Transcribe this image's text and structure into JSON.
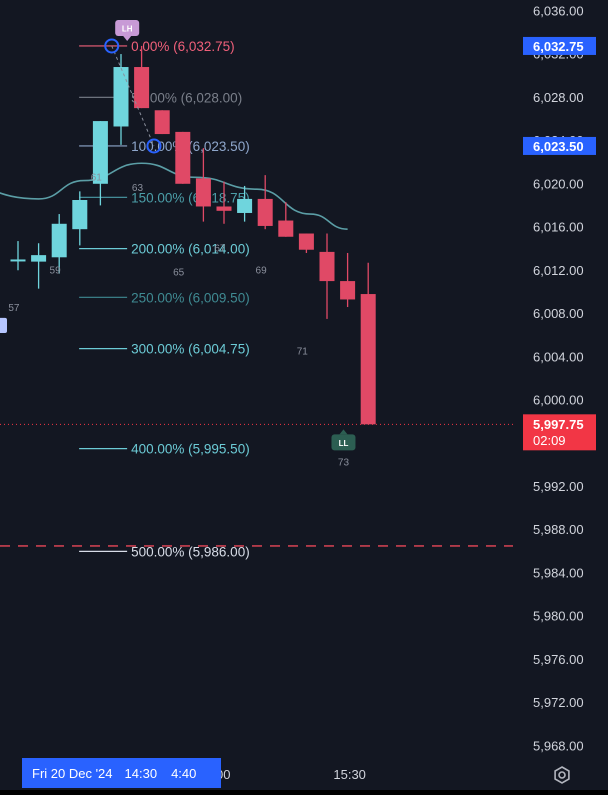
{
  "chart_data": {
    "type": "candlestick",
    "price_axis": {
      "ticks": [
        "6,036.00",
        "6,032.00",
        "6,028.00",
        "6,024.00",
        "6,020.00",
        "6,016.00",
        "6,012.00",
        "6,008.00",
        "6,004.00",
        "6,000.00",
        "5,996.00",
        "5,992.00",
        "5,988.00",
        "5,984.00",
        "5,980.00",
        "5,976.00",
        "5,972.00",
        "5,968.00"
      ],
      "tick_values": [
        6036,
        6032,
        6028,
        6024,
        6020,
        6016,
        6012,
        6008,
        6004,
        6000,
        5996,
        5992,
        5988,
        5984,
        5980,
        5976,
        5972,
        5968
      ],
      "range": [
        5966.7,
        6037.0
      ]
    },
    "time_axis": {
      "labels": [
        {
          "text": "5:00",
          "slot": 9.7
        },
        {
          "text": "15:30",
          "slot": 16.1
        }
      ],
      "crosshair": {
        "date": "Fri 20 Dec '24",
        "time1": "14:30",
        "time2": "4:40"
      }
    },
    "candles": [
      {
        "o": 6013.0,
        "h": 6014.7,
        "l": 6012.0,
        "c": 6013.0
      },
      {
        "o": 6012.8,
        "h": 6014.5,
        "l": 6010.3,
        "c": 6013.4
      },
      {
        "o": 6013.2,
        "h": 6017.2,
        "l": 6011.7,
        "c": 6016.3
      },
      {
        "o": 6015.8,
        "h": 6019.3,
        "l": 6014.3,
        "c": 6018.5
      },
      {
        "o": 6020.0,
        "h": 6025.8,
        "l": 6018.0,
        "c": 6025.8
      },
      {
        "o": 6025.3,
        "h": 6032.0,
        "l": 6023.6,
        "c": 6030.8
      },
      {
        "o": 6030.8,
        "h": 6032.75,
        "l": 6027.0,
        "c": 6027.0
      },
      {
        "o": 6026.8,
        "h": 6026.8,
        "l": 6024.6,
        "c": 6024.6
      },
      {
        "o": 6024.8,
        "h": 6024.8,
        "l": 6020.0,
        "c": 6020.0
      },
      {
        "o": 6020.5,
        "h": 6023.3,
        "l": 6016.5,
        "c": 6017.9
      },
      {
        "o": 6017.9,
        "h": 6020.2,
        "l": 6016.3,
        "c": 6017.5
      },
      {
        "o": 6017.3,
        "h": 6019.8,
        "l": 6016.5,
        "c": 6018.6
      },
      {
        "o": 6018.6,
        "h": 6020.8,
        "l": 6015.8,
        "c": 6016.1
      },
      {
        "o": 6016.6,
        "h": 6018.3,
        "l": 6015.1,
        "c": 6015.1
      },
      {
        "o": 6015.4,
        "h": 6015.4,
        "l": 6013.6,
        "c": 6013.9
      },
      {
        "o": 6013.7,
        "h": 6015.4,
        "l": 6007.5,
        "c": 6011.0
      },
      {
        "o": 6011.0,
        "h": 6013.6,
        "l": 6008.6,
        "c": 6009.3
      },
      {
        "o": 6009.8,
        "h": 6012.7,
        "l": 5997.75,
        "c": 5997.75
      }
    ],
    "moving_average": [
      {
        "slot": -3.5,
        "v": 6020.2
      },
      {
        "slot": 1.0,
        "v": 6018.6
      },
      {
        "slot": 3.2,
        "v": 6020.3
      },
      {
        "slot": 6.0,
        "v": 6021.9
      },
      {
        "slot": 8.6,
        "v": 6020.6
      },
      {
        "slot": 11.6,
        "v": 6019.5
      },
      {
        "slot": 14.2,
        "v": 6017.2
      },
      {
        "slot": 16.0,
        "v": 6015.8
      }
    ],
    "fib_levels": [
      {
        "label": "0.00% (6,032.75)",
        "value": 6032.75,
        "color": "#f0607a",
        "x_start_slot": 5.2
      },
      {
        "label": "50.00% (6,028.00)",
        "value": 6028.0,
        "color": "#7a7f8a",
        "x_start_slot": 5.2
      },
      {
        "label": "100.00% (6,023.50)",
        "value": 6023.5,
        "color": "#8fa7cc",
        "x_start_slot": 5.2
      },
      {
        "label": "150.00% (6,018.75)",
        "value": 6018.75,
        "color": "#4b9ea8",
        "x_start_slot": 5.2
      },
      {
        "label": "200.00% (6,014.00)",
        "value": 6014.0,
        "color": "#6ccbd6",
        "x_start_slot": 5.2
      },
      {
        "label": "250.00% (6,009.50)",
        "value": 6009.5,
        "color": "#3f8a92",
        "x_start_slot": 5.2
      },
      {
        "label": "300.00% (6,004.75)",
        "value": 6004.75,
        "color": "#6ccbd6",
        "x_start_slot": 5.2
      },
      {
        "label": "400.00% (5,995.50)",
        "value": 5995.5,
        "color": "#6ccbd6",
        "x_start_slot": 5.2
      },
      {
        "label": "500.00% (5,986.00)",
        "value": 5986.0,
        "color": "#d8dde8",
        "x_start_slot": 5.2
      }
    ],
    "bar_counts": [
      {
        "text": "57",
        "slot": -0.2,
        "v": 6008.5
      },
      {
        "text": "59",
        "slot": 1.8,
        "v": 6012.0
      },
      {
        "text": "61",
        "slot": 3.8,
        "v": 6020.6
      },
      {
        "text": "63",
        "slot": 5.8,
        "v": 6019.6
      },
      {
        "text": "65",
        "slot": 7.8,
        "v": 6011.8
      },
      {
        "text": "67",
        "slot": 9.8,
        "v": 6014.0
      },
      {
        "text": "69",
        "slot": 11.8,
        "v": 6012.0
      },
      {
        "text": "71",
        "slot": 13.8,
        "v": 6004.5
      },
      {
        "text": "73",
        "slot": 15.8,
        "v": 5994.2
      }
    ],
    "pivot_labels": [
      {
        "text": "LH",
        "slot": 5.3,
        "v": 6032.75,
        "color": "#c89ad6",
        "pointer": "down"
      },
      {
        "text": "LL",
        "slot": 15.8,
        "v": 5997.75,
        "color": "#2c5e52",
        "pointer": "up"
      }
    ],
    "anchor_points": [
      {
        "slot": 4.55,
        "v": 6032.75
      },
      {
        "slot": 6.6,
        "v": 6023.5
      }
    ],
    "reference_lines": [
      {
        "value": 5986.5,
        "style": "dashed",
        "color": "#c94050"
      }
    ],
    "last_price": {
      "value": 5997.75,
      "label": "5,997.75",
      "countdown": "02:09",
      "color": "#f23645"
    },
    "highlight_labels": [
      {
        "value": 6032.75,
        "label": "6,032.75",
        "color": "#2962ff"
      },
      {
        "value": 6023.5,
        "label": "6,023.50",
        "color": "#2962ff"
      }
    ],
    "colors": {
      "up": "#6fd5dd",
      "down": "#e04966",
      "background": "#131722",
      "ma": "#5b9ea6"
    }
  }
}
